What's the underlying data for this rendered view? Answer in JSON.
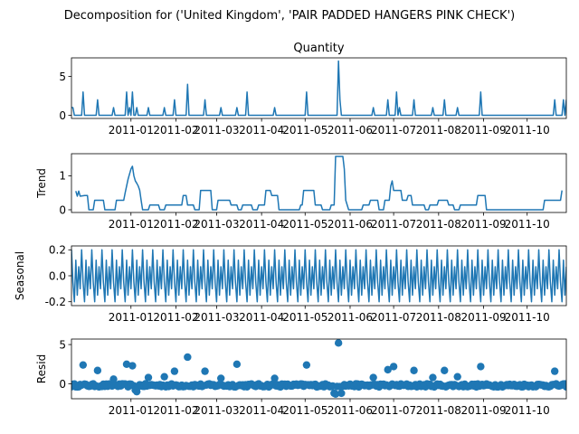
{
  "figure": {
    "suptitle": "Decomposition for ('United Kingdom', 'PAIR PADDED HANGERS PINK CHECK')",
    "line_color": "#1f77b4"
  },
  "chart_data": [
    {
      "type": "line",
      "title": "Quantity",
      "ylabel": "",
      "x_start": "2010-11-21",
      "x_end": "2011-10-28",
      "ylim": [
        -0.4,
        7.4
      ],
      "yticks": [
        0,
        5
      ],
      "xticks": [
        "2011-01",
        "2011-02",
        "2011-03",
        "2011-04",
        "2011-05",
        "2011-06",
        "2011-07",
        "2011-08",
        "2011-09",
        "2011-10"
      ],
      "spikes": [
        {
          "date": "2010-11-21",
          "value": 1
        },
        {
          "date": "2010-11-22",
          "value": 1
        },
        {
          "date": "2010-11-29",
          "value": 3
        },
        {
          "date": "2010-12-09",
          "value": 2
        },
        {
          "date": "2010-12-20",
          "value": 1
        },
        {
          "date": "2010-12-29",
          "value": 3
        },
        {
          "date": "2010-12-31",
          "value": 1
        },
        {
          "date": "2011-01-02",
          "value": 3
        },
        {
          "date": "2011-01-05",
          "value": 1
        },
        {
          "date": "2011-01-13",
          "value": 1
        },
        {
          "date": "2011-01-24",
          "value": 1
        },
        {
          "date": "2011-01-31",
          "value": 2
        },
        {
          "date": "2011-02-09",
          "value": 4
        },
        {
          "date": "2011-02-21",
          "value": 2
        },
        {
          "date": "2011-03-04",
          "value": 1
        },
        {
          "date": "2011-03-15",
          "value": 1
        },
        {
          "date": "2011-03-22",
          "value": 3
        },
        {
          "date": "2011-04-10",
          "value": 1
        },
        {
          "date": "2011-05-02",
          "value": 3
        },
        {
          "date": "2011-05-24",
          "value": 7
        },
        {
          "date": "2011-05-25",
          "value": 2
        },
        {
          "date": "2011-06-17",
          "value": 1
        },
        {
          "date": "2011-06-27",
          "value": 2
        },
        {
          "date": "2011-07-03",
          "value": 3
        },
        {
          "date": "2011-07-05",
          "value": 1
        },
        {
          "date": "2011-07-15",
          "value": 2
        },
        {
          "date": "2011-07-28",
          "value": 1
        },
        {
          "date": "2011-08-05",
          "value": 2
        },
        {
          "date": "2011-08-14",
          "value": 1
        },
        {
          "date": "2011-08-30",
          "value": 3
        },
        {
          "date": "2011-10-20",
          "value": 2
        },
        {
          "date": "2011-10-26",
          "value": 2
        },
        {
          "date": "2011-10-28",
          "value": 2
        }
      ]
    },
    {
      "type": "line",
      "title": "",
      "ylabel": "Trend",
      "x_start": "2010-11-21",
      "x_end": "2011-10-28",
      "ylim": [
        -0.08,
        1.65
      ],
      "yticks": [
        0,
        1
      ],
      "xticks": [
        "2011-01",
        "2011-02",
        "2011-03",
        "2011-04",
        "2011-05",
        "2011-06",
        "2011-07",
        "2011-08",
        "2011-09",
        "2011-10"
      ],
      "points": [
        [
          "2010-11-24",
          0.55
        ],
        [
          "2010-11-25",
          0.4
        ],
        [
          "2010-11-26",
          0.55
        ],
        [
          "2010-11-27",
          0.4
        ],
        [
          "2010-11-30",
          0.42
        ],
        [
          "2010-12-02",
          0.42
        ],
        [
          "2010-12-03",
          0.0
        ],
        [
          "2010-12-06",
          0.0
        ],
        [
          "2010-12-07",
          0.28
        ],
        [
          "2010-12-13",
          0.28
        ],
        [
          "2010-12-14",
          0.0
        ],
        [
          "2010-12-21",
          0.0
        ],
        [
          "2010-12-22",
          0.28
        ],
        [
          "2010-12-27",
          0.28
        ],
        [
          "2010-12-28",
          0.5
        ],
        [
          "2010-12-29",
          0.7
        ],
        [
          "2010-12-30",
          0.9
        ],
        [
          "2010-12-31",
          1.05
        ],
        [
          "2011-01-01",
          1.2
        ],
        [
          "2011-01-02",
          1.28
        ],
        [
          "2011-01-03",
          1.0
        ],
        [
          "2011-01-04",
          0.85
        ],
        [
          "2011-01-05",
          0.78
        ],
        [
          "2011-01-06",
          0.7
        ],
        [
          "2011-01-07",
          0.58
        ],
        [
          "2011-01-08",
          0.28
        ],
        [
          "2011-01-09",
          0.0
        ],
        [
          "2011-01-13",
          0.0
        ],
        [
          "2011-01-14",
          0.14
        ],
        [
          "2011-01-20",
          0.14
        ],
        [
          "2011-01-21",
          0.0
        ],
        [
          "2011-01-24",
          0.0
        ],
        [
          "2011-01-25",
          0.14
        ],
        [
          "2011-02-05",
          0.14
        ],
        [
          "2011-02-06",
          0.42
        ],
        [
          "2011-02-08",
          0.42
        ],
        [
          "2011-02-09",
          0.14
        ],
        [
          "2011-02-13",
          0.14
        ],
        [
          "2011-02-14",
          0.0
        ],
        [
          "2011-02-17",
          0.0
        ],
        [
          "2011-02-18",
          0.57
        ],
        [
          "2011-02-25",
          0.57
        ],
        [
          "2011-02-26",
          0.0
        ],
        [
          "2011-03-01",
          0.0
        ],
        [
          "2011-03-02",
          0.28
        ],
        [
          "2011-03-10",
          0.28
        ],
        [
          "2011-03-11",
          0.14
        ],
        [
          "2011-03-15",
          0.14
        ],
        [
          "2011-03-16",
          0.0
        ],
        [
          "2011-03-18",
          0.0
        ],
        [
          "2011-03-19",
          0.14
        ],
        [
          "2011-03-25",
          0.14
        ],
        [
          "2011-03-26",
          0.0
        ],
        [
          "2011-03-29",
          0.0
        ],
        [
          "2011-03-30",
          0.14
        ],
        [
          "2011-04-03",
          0.14
        ],
        [
          "2011-04-04",
          0.57
        ],
        [
          "2011-04-07",
          0.57
        ],
        [
          "2011-04-08",
          0.42
        ],
        [
          "2011-04-12",
          0.42
        ],
        [
          "2011-04-13",
          0.0
        ],
        [
          "2011-04-27",
          0.0
        ],
        [
          "2011-04-28",
          0.14
        ],
        [
          "2011-04-29",
          0.14
        ],
        [
          "2011-04-30",
          0.57
        ],
        [
          "2011-05-07",
          0.57
        ],
        [
          "2011-05-08",
          0.14
        ],
        [
          "2011-05-12",
          0.14
        ],
        [
          "2011-05-13",
          0.0
        ],
        [
          "2011-05-18",
          0.0
        ],
        [
          "2011-05-19",
          0.14
        ],
        [
          "2011-05-21",
          0.14
        ],
        [
          "2011-05-22",
          1.57
        ],
        [
          "2011-05-27",
          1.57
        ],
        [
          "2011-05-28",
          1.2
        ],
        [
          "2011-05-29",
          0.28
        ],
        [
          "2011-05-30",
          0.14
        ],
        [
          "2011-05-31",
          0.0
        ],
        [
          "2011-06-09",
          0.0
        ],
        [
          "2011-06-10",
          0.14
        ],
        [
          "2011-06-14",
          0.14
        ],
        [
          "2011-06-15",
          0.28
        ],
        [
          "2011-06-20",
          0.28
        ],
        [
          "2011-06-21",
          0.0
        ],
        [
          "2011-06-24",
          0.0
        ],
        [
          "2011-06-25",
          0.28
        ],
        [
          "2011-06-28",
          0.28
        ],
        [
          "2011-06-29",
          0.7
        ],
        [
          "2011-06-30",
          0.85
        ],
        [
          "2011-07-01",
          0.57
        ],
        [
          "2011-07-06",
          0.57
        ],
        [
          "2011-07-07",
          0.28
        ],
        [
          "2011-07-10",
          0.28
        ],
        [
          "2011-07-11",
          0.42
        ],
        [
          "2011-07-13",
          0.42
        ],
        [
          "2011-07-14",
          0.14
        ],
        [
          "2011-07-22",
          0.14
        ],
        [
          "2011-07-23",
          0.0
        ],
        [
          "2011-07-25",
          0.0
        ],
        [
          "2011-07-26",
          0.14
        ],
        [
          "2011-07-31",
          0.14
        ],
        [
          "2011-08-01",
          0.28
        ],
        [
          "2011-08-07",
          0.28
        ],
        [
          "2011-08-08",
          0.14
        ],
        [
          "2011-08-11",
          0.14
        ],
        [
          "2011-08-12",
          0.0
        ],
        [
          "2011-08-15",
          0.0
        ],
        [
          "2011-08-16",
          0.14
        ],
        [
          "2011-08-27",
          0.14
        ],
        [
          "2011-08-28",
          0.42
        ],
        [
          "2011-09-02",
          0.42
        ],
        [
          "2011-09-03",
          0.0
        ],
        [
          "2011-10-12",
          0.0
        ],
        [
          "2011-10-13",
          0.28
        ],
        [
          "2011-10-24",
          0.28
        ],
        [
          "2011-10-25",
          0.57
        ]
      ]
    },
    {
      "type": "line",
      "title": "",
      "ylabel": "Seasonal",
      "x_start": "2010-11-21",
      "x_end": "2011-10-28",
      "ylim": [
        -0.23,
        0.23
      ],
      "yticks": [
        -0.2,
        0.0,
        0.2
      ],
      "xticks": [
        "2011-01",
        "2011-02",
        "2011-03",
        "2011-04",
        "2011-05",
        "2011-06",
        "2011-07",
        "2011-08",
        "2011-09",
        "2011-10"
      ],
      "period_days": 7,
      "weekly_pattern": [
        0.2,
        -0.05,
        -0.2,
        0.12,
        -0.15,
        0.07,
        -0.1
      ],
      "series_start": "2010-11-21",
      "series_end": "2011-10-28"
    },
    {
      "type": "scatter",
      "title": "",
      "ylabel": "Resid",
      "x_start": "2010-11-21",
      "x_end": "2011-10-28",
      "ylim": [
        -1.9,
        5.7
      ],
      "yticks": [
        0,
        5
      ],
      "xticks": [
        "2011-01",
        "2011-02",
        "2011-03",
        "2011-04",
        "2011-05",
        "2011-06",
        "2011-07",
        "2011-08",
        "2011-09",
        "2011-10"
      ],
      "residual_noise": 0.2,
      "outliers": [
        {
          "date": "2010-11-29",
          "value": 2.4
        },
        {
          "date": "2010-12-09",
          "value": 1.7
        },
        {
          "date": "2010-12-20",
          "value": 0.6
        },
        {
          "date": "2010-12-29",
          "value": 2.5
        },
        {
          "date": "2011-01-02",
          "value": 2.3
        },
        {
          "date": "2011-01-04",
          "value": -0.8
        },
        {
          "date": "2011-01-05",
          "value": -1.0
        },
        {
          "date": "2011-01-13",
          "value": 0.8
        },
        {
          "date": "2011-01-24",
          "value": 0.9
        },
        {
          "date": "2011-01-31",
          "value": 1.6
        },
        {
          "date": "2011-02-09",
          "value": 3.4
        },
        {
          "date": "2011-02-21",
          "value": 1.6
        },
        {
          "date": "2011-03-04",
          "value": 0.7
        },
        {
          "date": "2011-03-15",
          "value": 2.5
        },
        {
          "date": "2011-04-10",
          "value": 0.7
        },
        {
          "date": "2011-05-02",
          "value": 2.4
        },
        {
          "date": "2011-05-21",
          "value": -1.2
        },
        {
          "date": "2011-05-22",
          "value": -1.3
        },
        {
          "date": "2011-05-24",
          "value": 5.2
        },
        {
          "date": "2011-05-26",
          "value": -1.2
        },
        {
          "date": "2011-06-17",
          "value": 0.8
        },
        {
          "date": "2011-06-27",
          "value": 1.8
        },
        {
          "date": "2011-07-01",
          "value": 2.2
        },
        {
          "date": "2011-07-15",
          "value": 1.7
        },
        {
          "date": "2011-07-28",
          "value": 0.8
        },
        {
          "date": "2011-08-05",
          "value": 1.7
        },
        {
          "date": "2011-08-14",
          "value": 0.9
        },
        {
          "date": "2011-08-30",
          "value": 2.2
        },
        {
          "date": "2011-10-20",
          "value": 1.6
        }
      ]
    }
  ]
}
